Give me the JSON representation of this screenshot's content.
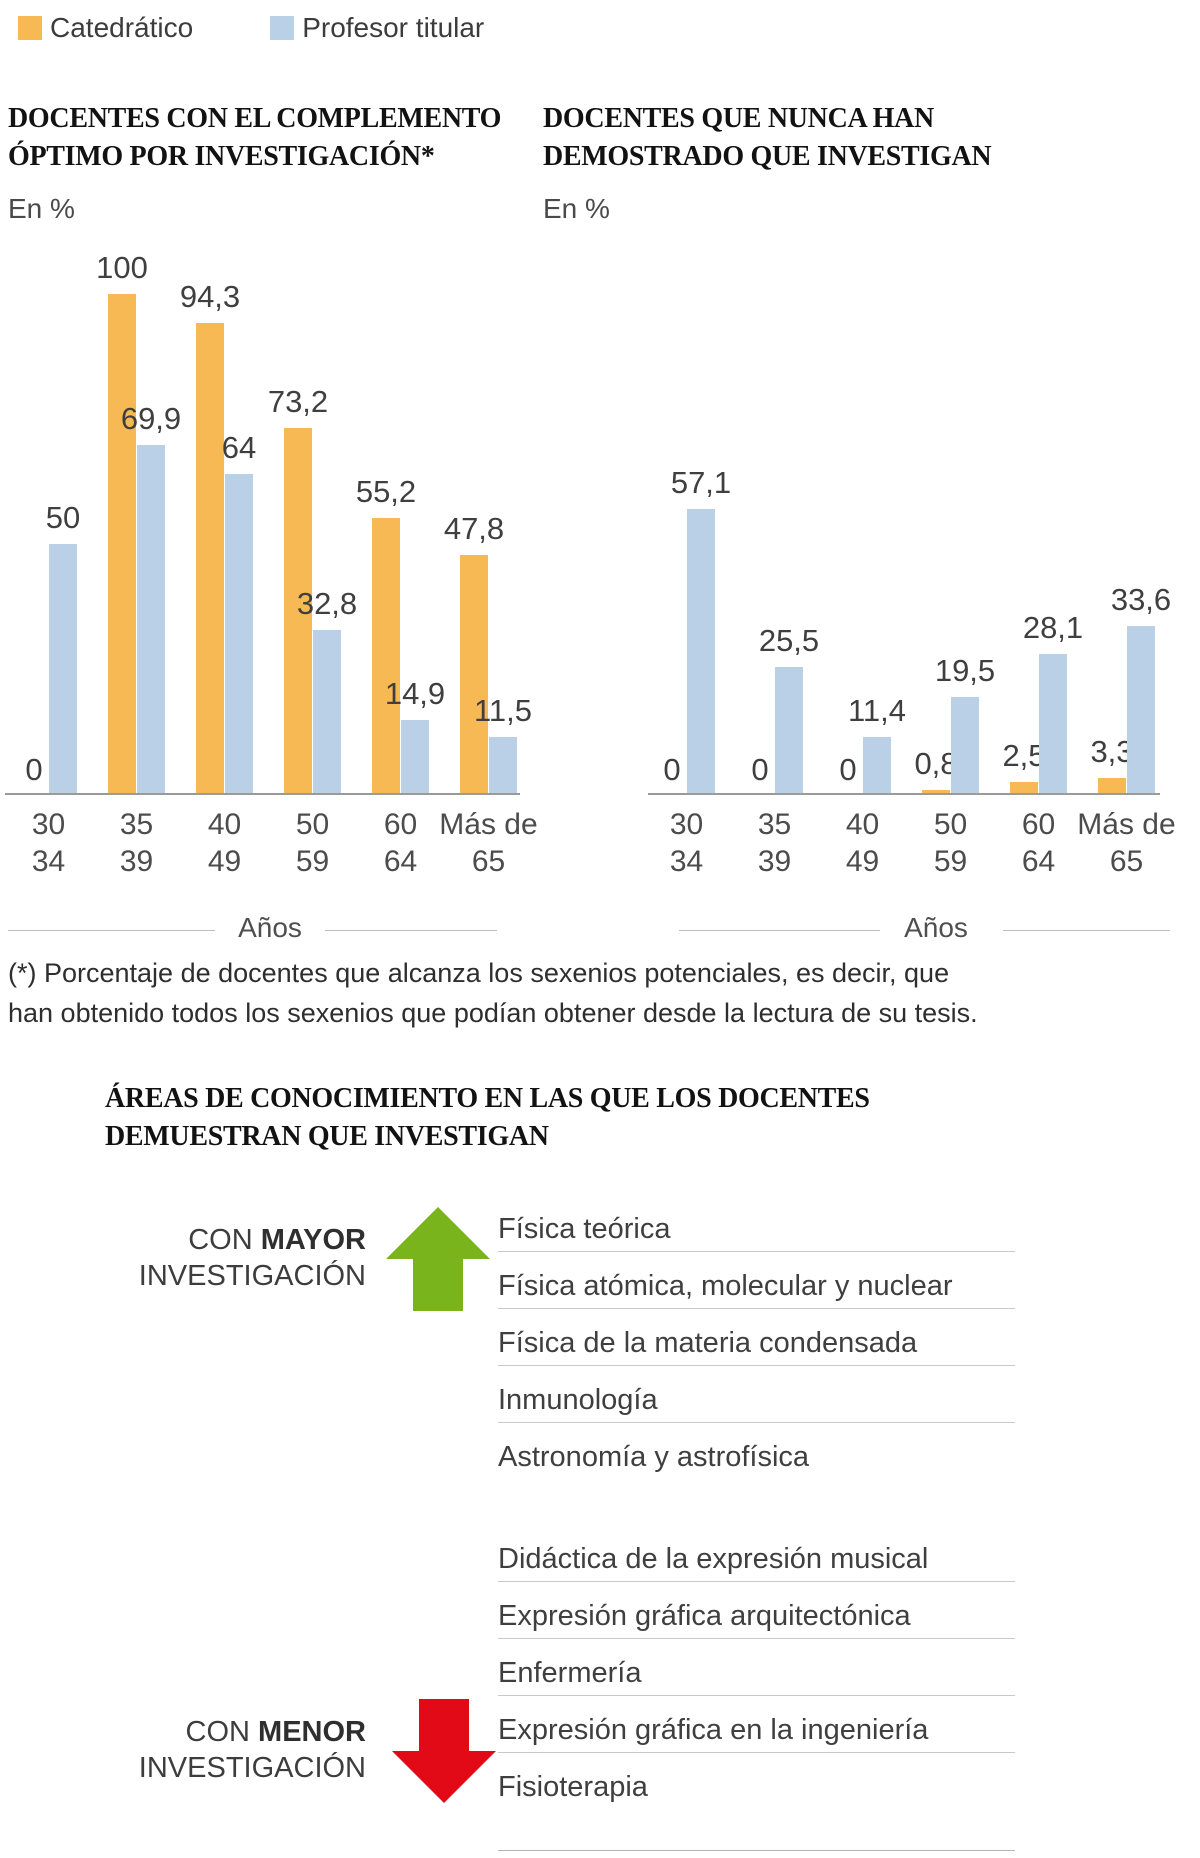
{
  "legend": {
    "items": [
      {
        "label": "Catedrático",
        "color": "#f7b954"
      },
      {
        "label": "Profesor titular",
        "color": "#bad0e7"
      }
    ]
  },
  "charts": [
    {
      "title_lines": [
        "DOCENTES CON EL COMPLEMENTO",
        "ÓPTIMO POR INVESTIGACIÓN*"
      ],
      "unit": "En %",
      "axis_title": "Años"
    },
    {
      "title_lines": [
        "DOCENTES QUE NUNCA HAN",
        "DEMOSTRADO QUE INVESTIGAN"
      ],
      "unit": "En %",
      "axis_title": "Años"
    }
  ],
  "chart_data": [
    {
      "type": "bar",
      "title": "DOCENTES CON EL COMPLEMENTO ÓPTIMO POR INVESTIGACIÓN*",
      "unit": "En %",
      "xlabel": "Años",
      "ylim": [
        0,
        100
      ],
      "grid": false,
      "legend_position": "top",
      "categories": [
        "30-34",
        "35-39",
        "40-49",
        "50-59",
        "60-64",
        "Más de 65"
      ],
      "categories_display": [
        [
          "30",
          "34"
        ],
        [
          "35",
          "39"
        ],
        [
          "40",
          "49"
        ],
        [
          "50",
          "59"
        ],
        [
          "60",
          "64"
        ],
        [
          "Más de",
          "65"
        ]
      ],
      "series": [
        {
          "name": "Catedrático",
          "color": "#f7b954",
          "values": [
            0,
            100,
            94.3,
            73.2,
            55.2,
            47.8
          ]
        },
        {
          "name": "Profesor titular",
          "color": "#bad0e7",
          "values": [
            50,
            69.9,
            64,
            32.8,
            14.9,
            11.5
          ]
        }
      ]
    },
    {
      "type": "bar",
      "title": "DOCENTES QUE NUNCA HAN DEMOSTRADO QUE INVESTIGAN",
      "unit": "En %",
      "xlabel": "Años",
      "ylim": [
        0,
        100
      ],
      "grid": false,
      "legend_position": "top",
      "categories": [
        "30-34",
        "35-39",
        "40-49",
        "50-59",
        "60-64",
        "Más de 65"
      ],
      "categories_display": [
        [
          "30",
          "34"
        ],
        [
          "35",
          "39"
        ],
        [
          "40",
          "49"
        ],
        [
          "50",
          "59"
        ],
        [
          "60",
          "64"
        ],
        [
          "Más de",
          "65"
        ]
      ],
      "series": [
        {
          "name": "Catedrático",
          "color": "#f7b954",
          "values": [
            0,
            0,
            0,
            0.8,
            2.5,
            3.3
          ]
        },
        {
          "name": "Profesor titular",
          "color": "#bad0e7",
          "values": [
            57.1,
            25.5,
            11.4,
            19.5,
            28.1,
            33.6
          ]
        }
      ]
    }
  ],
  "footnote": {
    "lines": [
      "(*) Porcentaje de docentes que alcanza los sexenios potenciales, es decir, que",
      "han obtenido todos los sexenios que podían obtener desde la lectura de su tesis."
    ]
  },
  "section_areas": {
    "title_lines": [
      "ÁREAS DE CONOCIMIENTO EN LAS QUE LOS DOCENTES",
      "DEMUESTRAN QUE INVESTIGAN"
    ],
    "mayor": {
      "prefix": "CON ",
      "emphasis": "MAYOR",
      "line2": "INVESTIGACIÓN",
      "arrow_color": "#7ab41d"
    },
    "areas_mayor": [
      "Física teórica",
      "Física atómica, molecular y nuclear",
      "Física de la materia condensada",
      "Inmunología",
      "Astronomía y astrofísica"
    ],
    "menor": {
      "prefix": "CON ",
      "emphasis": "MENOR",
      "line2": "INVESTIGACIÓN",
      "arrow_color": "#e30a17"
    },
    "areas_menor": [
      "Didáctica de la expresión musical",
      "Expresión gráfica arquitectónica",
      "Enfermería",
      "Expresión gráfica en la ingeniería",
      "Fisioterapia"
    ]
  }
}
